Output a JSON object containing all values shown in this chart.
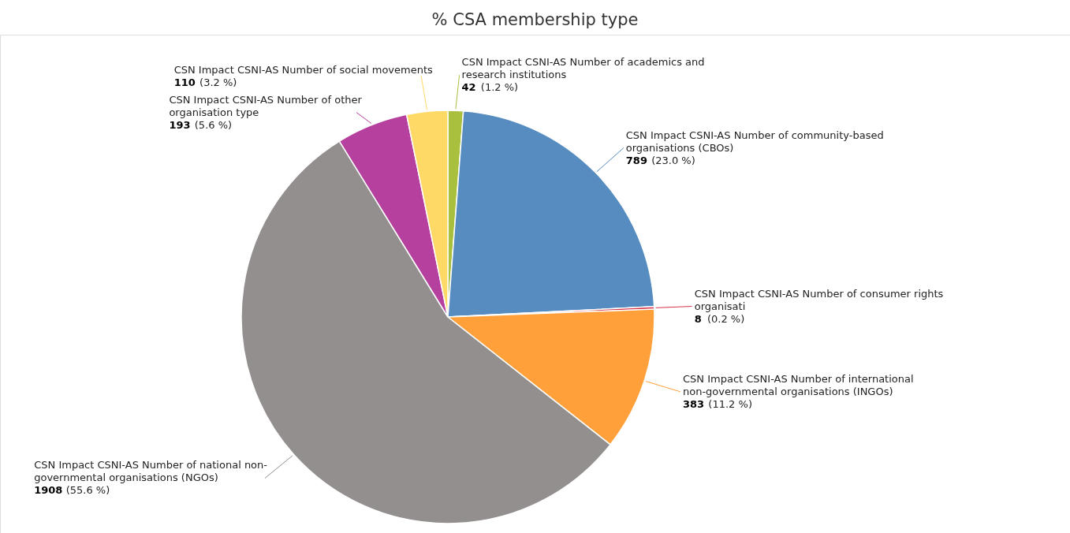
{
  "chart_data": {
    "type": "pie",
    "title": "% CSA membership type",
    "categories": [
      "CSN Impact CSNI-AS Number of academics and research institutions",
      "CSN Impact CSNI-AS Number of community-based organisations (CBOs)",
      "CSN Impact CSNI-AS Number of consumer rights organisati",
      "CSN Impact CSNI-AS Number of international non-governmental organisations (INGOs)",
      "CSN Impact CSNI-AS Number of national non-governmental organisations (NGOs)",
      "CSN Impact CSNI-AS Number of other organisation type",
      "CSN Impact CSNI-AS Number of social movements"
    ],
    "values": [
      1.2,
      23.0,
      0.2,
      11.2,
      55.6,
      5.6,
      3.2
    ],
    "colors": [
      "#a8c03e",
      "#568cc0",
      "#d9364b",
      "#ffa03a",
      "#948f8f",
      "#b5409e",
      "#ffd966"
    ],
    "value_labels": [
      "42 (1.2 %)",
      "789 (23.0 %)",
      "8 (0.2 %)",
      "383 (11.2 %)",
      "1908 (55.6 %)",
      "193 (5.6 %)",
      "110 (3.2 %)"
    ]
  }
}
